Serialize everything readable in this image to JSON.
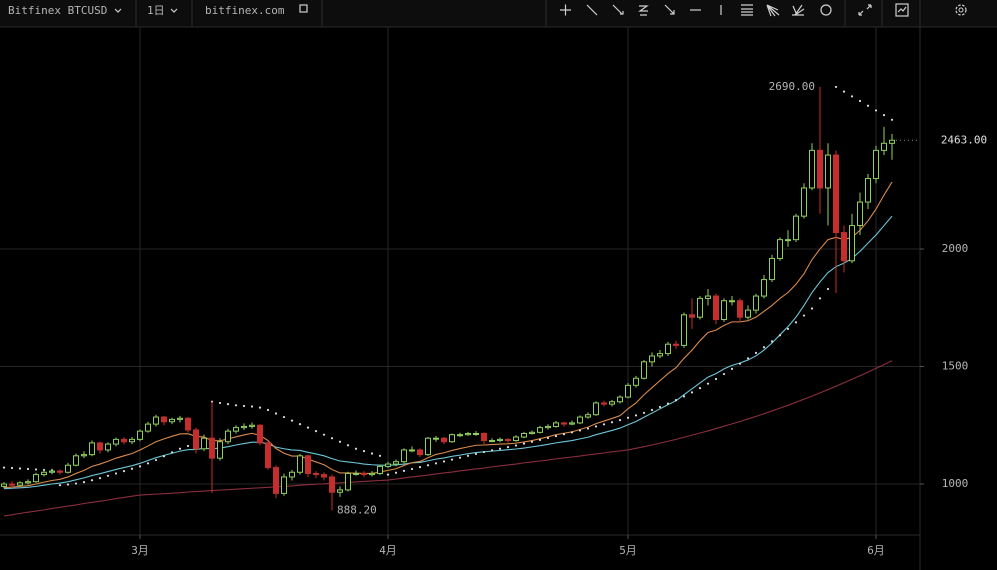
{
  "toolbar": {
    "symbol": "Bitfinex BTCUSD",
    "interval": "1日",
    "site": "bitfinex.com"
  },
  "chart_data": {
    "type": "candlestick",
    "categories": [
      null,
      null,
      null,
      null,
      null,
      null,
      null,
      null,
      null,
      null,
      null,
      null,
      null,
      null,
      null,
      null,
      null,
      "3月",
      null,
      null,
      null,
      null,
      null,
      null,
      null,
      null,
      null,
      null,
      null,
      null,
      null,
      null,
      null,
      null,
      null,
      null,
      null,
      null,
      null,
      null,
      null,
      null,
      null,
      null,
      null,
      null,
      null,
      null,
      "4月",
      null,
      null,
      null,
      null,
      null,
      null,
      null,
      null,
      null,
      null,
      null,
      null,
      null,
      null,
      null,
      null,
      null,
      null,
      null,
      null,
      null,
      null,
      null,
      null,
      null,
      null,
      null,
      null,
      null,
      "5月",
      null,
      null,
      null,
      null,
      null,
      null,
      null,
      null,
      null,
      null,
      null,
      null,
      null,
      null,
      null,
      null,
      null,
      null,
      null,
      null,
      null,
      null,
      null,
      null,
      null,
      null,
      null,
      null,
      null,
      null,
      "6月",
      null,
      null
    ],
    "open": [
      990,
      1000,
      995,
      1005,
      1010,
      1040,
      1050,
      1055,
      1050,
      1080,
      1120,
      1125,
      1175,
      1145,
      1170,
      1190,
      1180,
      1190,
      1225,
      1255,
      1285,
      1265,
      1275,
      1280,
      1230,
      1150,
      1195,
      1110,
      1180,
      1225,
      1240,
      1245,
      1250,
      1175,
      1070,
      960,
      1030,
      1050,
      1120,
      1045,
      1040,
      1030,
      965,
      975,
      1045,
      1045,
      1040,
      1045,
      1075,
      1085,
      1095,
      1145,
      1145,
      1125,
      1195,
      1195,
      1180,
      1210,
      1210,
      1215,
      1215,
      1185,
      1185,
      1190,
      1185,
      1200,
      1215,
      1220,
      1240,
      1245,
      1260,
      1255,
      1260,
      1285,
      1295,
      1345,
      1340,
      1350,
      1370,
      1420,
      1450,
      1520,
      1545,
      1555,
      1595,
      1590,
      1720,
      1710,
      1790,
      1800,
      1700,
      1780,
      1780,
      1710,
      1740,
      1800,
      1870,
      1960,
      2040,
      2040,
      2140,
      2260,
      2420,
      2260,
      2400,
      2070,
      1950,
      2100,
      2200,
      2300,
      2420,
      2450
    ],
    "high": [
      1008,
      1012,
      1012,
      1020,
      1048,
      1058,
      1065,
      1062,
      1090,
      1130,
      1140,
      1185,
      1180,
      1178,
      1198,
      1200,
      1200,
      1232,
      1265,
      1295,
      1290,
      1282,
      1290,
      1285,
      1240,
      1210,
      1350,
      1195,
      1235,
      1250,
      1258,
      1262,
      1255,
      1180,
      1080,
      1045,
      1060,
      1128,
      1125,
      1055,
      1050,
      1040,
      990,
      1052,
      1058,
      1055,
      1055,
      1082,
      1095,
      1105,
      1152,
      1160,
      1152,
      1200,
      1205,
      1200,
      1215,
      1218,
      1222,
      1225,
      1220,
      1195,
      1198,
      1195,
      1208,
      1222,
      1228,
      1248,
      1255,
      1268,
      1265,
      1270,
      1292,
      1305,
      1352,
      1355,
      1358,
      1378,
      1430,
      1460,
      1528,
      1560,
      1570,
      1605,
      1610,
      1730,
      1790,
      1800,
      1830,
      1810,
      1790,
      1800,
      1790,
      1760,
      1810,
      1890,
      1975,
      2050,
      2080,
      2150,
      2280,
      2450,
      2690,
      2450,
      2420,
      2100,
      2150,
      2240,
      2320,
      2440,
      2520,
      2490
    ],
    "low": [
      982,
      985,
      990,
      998,
      1005,
      1032,
      1042,
      1040,
      1045,
      1075,
      1110,
      1118,
      1130,
      1135,
      1160,
      1168,
      1170,
      1182,
      1218,
      1245,
      1250,
      1255,
      1262,
      1220,
      1130,
      1140,
      962,
      1100,
      1170,
      1215,
      1230,
      1235,
      1165,
      1060,
      940,
      950,
      1015,
      1040,
      1030,
      1025,
      1015,
      888.2,
      945,
      968,
      1035,
      1030,
      1032,
      1038,
      1068,
      1075,
      1088,
      1135,
      1115,
      1120,
      1180,
      1170,
      1175,
      1200,
      1205,
      1205,
      1170,
      1178,
      1178,
      1175,
      1180,
      1195,
      1210,
      1215,
      1232,
      1240,
      1245,
      1250,
      1255,
      1278,
      1290,
      1330,
      1330,
      1342,
      1365,
      1410,
      1445,
      1500,
      1535,
      1545,
      1575,
      1580,
      1660,
      1700,
      1760,
      1680,
      1690,
      1760,
      1690,
      1700,
      1725,
      1790,
      1860,
      1950,
      2010,
      2030,
      2130,
      2250,
      2150,
      2100,
      1813,
      1900,
      1940,
      2060,
      2170,
      2280,
      2400,
      2380
    ],
    "close": [
      1000,
      995,
      1005,
      1010,
      1040,
      1050,
      1055,
      1050,
      1080,
      1120,
      1125,
      1175,
      1145,
      1170,
      1190,
      1180,
      1190,
      1225,
      1255,
      1285,
      1265,
      1275,
      1280,
      1230,
      1150,
      1195,
      1110,
      1180,
      1225,
      1240,
      1245,
      1250,
      1175,
      1070,
      960,
      1030,
      1050,
      1120,
      1045,
      1040,
      1030,
      965,
      975,
      1045,
      1045,
      1040,
      1045,
      1075,
      1085,
      1095,
      1145,
      1145,
      1125,
      1195,
      1195,
      1180,
      1210,
      1210,
      1215,
      1215,
      1185,
      1185,
      1190,
      1185,
      1200,
      1215,
      1220,
      1240,
      1245,
      1260,
      1255,
      1260,
      1285,
      1295,
      1345,
      1340,
      1350,
      1370,
      1420,
      1450,
      1520,
      1545,
      1555,
      1595,
      1590,
      1720,
      1710,
      1790,
      1800,
      1700,
      1780,
      1780,
      1710,
      1740,
      1800,
      1870,
      1960,
      2040,
      2040,
      2140,
      2260,
      2420,
      2260,
      2400,
      2070,
      1950,
      2100,
      2200,
      2300,
      2420,
      2450,
      2463
    ],
    "up_color": "#8fcf5a",
    "down_color": "#c62e2e",
    "overlays": [
      {
        "style": "line",
        "color": "#8a2f3c",
        "values": [
          864,
          869,
          875,
          880,
          885,
          890,
          896,
          901,
          906,
          911,
          917,
          922,
          927,
          932,
          938,
          943,
          948,
          953,
          955,
          957,
          959,
          961,
          963,
          966,
          968,
          970,
          972,
          974,
          976,
          978,
          980,
          982,
          984,
          986,
          988,
          990,
          992,
          995,
          997,
          999,
          1001,
          1003,
          1005,
          1007,
          1009,
          1011,
          1013,
          1015,
          1017,
          1021,
          1026,
          1030,
          1034,
          1038,
          1043,
          1047,
          1051,
          1056,
          1060,
          1064,
          1068,
          1073,
          1077,
          1081,
          1085,
          1090,
          1094,
          1098,
          1102,
          1107,
          1111,
          1115,
          1119,
          1124,
          1128,
          1132,
          1137,
          1141,
          1145,
          1152,
          1159,
          1166,
          1174,
          1182,
          1190,
          1199,
          1208,
          1217,
          1226,
          1236,
          1246,
          1256,
          1266,
          1277,
          1288,
          1299,
          1311,
          1323,
          1335,
          1348,
          1361,
          1374,
          1388,
          1402,
          1416,
          1431,
          1446,
          1461,
          1476,
          1492,
          1508,
          1525
        ]
      },
      {
        "style": "line",
        "color": "#6cc6d8",
        "values": [
          980,
          982,
          984,
          986,
          990,
          995,
          1000,
          1004,
          1010,
          1018,
          1026,
          1036,
          1044,
          1053,
          1062,
          1070,
          1078,
          1088,
          1100,
          1112,
          1122,
          1131,
          1140,
          1146,
          1147,
          1152,
          1150,
          1153,
          1159,
          1166,
          1172,
          1178,
          1178,
          1171,
          1157,
          1150,
          1145,
          1143,
          1135,
          1128,
          1120,
          1108,
          1098,
          1094,
          1090,
          1085,
          1082,
          1080,
          1080,
          1081,
          1085,
          1090,
          1092,
          1099,
          1106,
          1111,
          1118,
          1123,
          1129,
          1134,
          1137,
          1140,
          1143,
          1146,
          1149,
          1153,
          1158,
          1163,
          1169,
          1175,
          1180,
          1185,
          1192,
          1199,
          1210,
          1219,
          1228,
          1238,
          1252,
          1266,
          1284,
          1302,
          1320,
          1338,
          1354,
          1380,
          1405,
          1430,
          1455,
          1470,
          1490,
          1505,
          1515,
          1528,
          1545,
          1570,
          1600,
          1635,
          1670,
          1710,
          1760,
          1815,
          1860,
          1900,
          1925,
          1940,
          1960,
          1990,
          2025,
          2060,
          2100,
          2140
        ]
      },
      {
        "style": "line",
        "color": "#d98a4c",
        "values": [
          985,
          987,
          990,
          993,
          1000,
          1008,
          1015,
          1020,
          1030,
          1045,
          1058,
          1075,
          1085,
          1097,
          1110,
          1120,
          1130,
          1145,
          1162,
          1180,
          1192,
          1203,
          1213,
          1214,
          1203,
          1200,
          1185,
          1184,
          1192,
          1201,
          1209,
          1216,
          1207,
          1185,
          1151,
          1131,
          1119,
          1119,
          1106,
          1094,
          1082,
          1062,
          1047,
          1047,
          1046,
          1045,
          1045,
          1051,
          1058,
          1065,
          1079,
          1091,
          1096,
          1112,
          1126,
          1133,
          1143,
          1151,
          1158,
          1165,
          1166,
          1168,
          1170,
          1171,
          1174,
          1179,
          1185,
          1193,
          1201,
          1210,
          1216,
          1222,
          1232,
          1242,
          1257,
          1268,
          1279,
          1291,
          1320,
          1345,
          1380,
          1410,
          1440,
          1470,
          1495,
          1535,
          1570,
          1610,
          1645,
          1655,
          1675,
          1690,
          1690,
          1695,
          1710,
          1735,
          1760,
          1790,
          1815,
          1850,
          1895,
          1955,
          2000,
          2040,
          2050,
          2040,
          2050,
          2080,
          2120,
          2170,
          2230,
          2285
        ]
      },
      {
        "style": "dots",
        "color": "#dddddd",
        "values": [
          1070,
          1068,
          1066,
          1064,
          1062,
          1060,
          1058,
          995,
          998,
          1002,
          1008,
          1016,
          1025,
          1035,
          1045,
          1055,
          1065,
          1075,
          1088,
          1102,
          1118,
          1135,
          1150,
          1162,
          1172,
          1180,
          1350,
          1345,
          1340,
          1335,
          1332,
          1330,
          1325,
          1315,
          1300,
          1285,
          1270,
          1255,
          1240,
          1225,
          1210,
          1195,
          1180,
          1165,
          1150,
          1140,
          1130,
          1120,
          1040,
          1048,
          1056,
          1064,
          1072,
          1080,
          1088,
          1096,
          1104,
          1112,
          1120,
          1128,
          1136,
          1143,
          1150,
          1157,
          1164,
          1172,
          1180,
          1188,
          1196,
          1204,
          1212,
          1220,
          1228,
          1236,
          1245,
          1254,
          1263,
          1272,
          1282,
          1292,
          1303,
          1315,
          1328,
          1342,
          1357,
          1373,
          1390,
          1408,
          1427,
          1447,
          1468,
          1490,
          1512,
          1535,
          1558,
          1582,
          1607,
          1633,
          1660,
          1688,
          1717,
          1747,
          1790,
          1830,
          2690,
          2670,
          2650,
          2630,
          2610,
          2590,
          2570,
          2550
        ]
      }
    ],
    "high_label": {
      "value": 2690,
      "label": "2690.00"
    },
    "low_label": {
      "value": 888.2,
      "label": "888.20"
    },
    "last_price": {
      "value": 2463,
      "label": "2463.00"
    },
    "ylim": [
      783,
      2945
    ],
    "yticks": [
      1000,
      1500,
      2000
    ],
    "grid": true
  }
}
